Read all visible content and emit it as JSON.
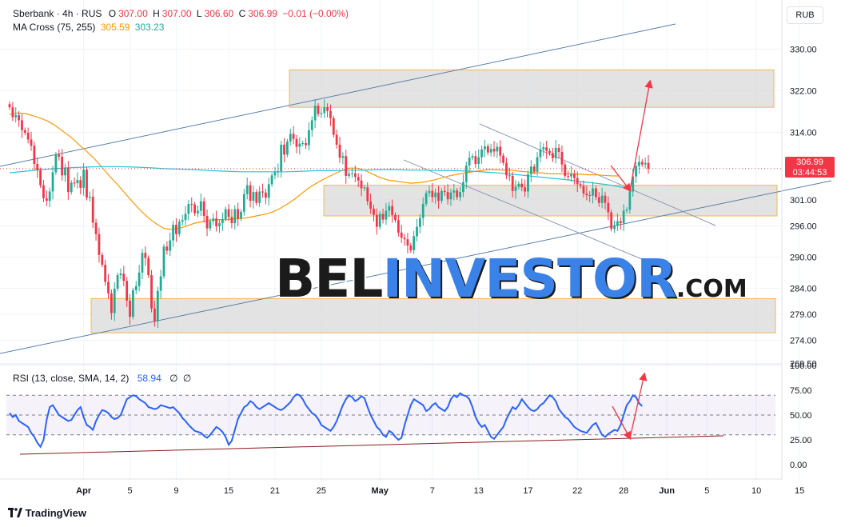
{
  "header": {
    "symbol": "Sberbank · 4h · RUS",
    "o_label": "O",
    "o": "307.00",
    "h_label": "H",
    "h": "307.00",
    "l_label": "L",
    "l": "306.60",
    "c_label": "C",
    "c": "306.99",
    "change": "−0.01 (−0.00%)",
    "ma_label": "MA Cross (75, 255)",
    "ma_fast": "305.59",
    "ma_slow": "303.23",
    "rsi_label": "RSI (13, close, SMA, 14, 2)",
    "rsi_value": "58.94",
    "rsi_na1": "∅",
    "rsi_na2": "∅",
    "currency": "RUB"
  },
  "price_tag": {
    "price": "306.99",
    "countdown": "03:44:53"
  },
  "watermark": {
    "part1": "BEL",
    "part2": "INVESTOR",
    "part3": ".COM"
  },
  "branding": {
    "logo_icon": "tradingview-logo-icon",
    "text": "TradingView"
  },
  "colors": {
    "up": "#22ab94",
    "down": "#f23645",
    "ma_fast": "#ff9800",
    "ma_slow": "#26c6da",
    "rsi": "#2962ff",
    "trend": "#5b7fa6",
    "zone_fill": "#d9d9d9",
    "zone_border": "#f2b84b",
    "arrow": "#f23645"
  },
  "chart_data": [
    {
      "type": "candlestick",
      "title": "Sberbank · 4h · RUS",
      "y_ticks": [
        330.0,
        322.0,
        314.0,
        301.0,
        296.0,
        290.0,
        284.0,
        279.0,
        274.0,
        269.5
      ],
      "y_tick_labels": [
        "330.00",
        "322.00",
        "314.00",
        "301.00",
        "296.00",
        "290.00",
        "284.00",
        "279.00",
        "274.00",
        "269.50"
      ],
      "x_ticks": [
        {
          "label": "Apr",
          "bar": 24
        },
        {
          "label": "5",
          "bar": 39
        },
        {
          "label": "9",
          "bar": 54
        },
        {
          "label": "15",
          "bar": 71
        },
        {
          "label": "21",
          "bar": 86
        },
        {
          "label": "25",
          "bar": 101
        },
        {
          "label": "May",
          "bar": 120
        },
        {
          "label": "7",
          "bar": 137
        },
        {
          "label": "13",
          "bar": 152
        },
        {
          "label": "17",
          "bar": 168
        },
        {
          "label": "22",
          "bar": 184
        },
        {
          "label": "28",
          "bar": 199
        },
        {
          "label": "Jun",
          "bar": 213
        },
        {
          "label": "5",
          "bar": 226
        },
        {
          "label": "10",
          "bar": 242
        },
        {
          "label": "15",
          "bar": 256
        }
      ],
      "closes": [
        318.8,
        316.9,
        317.3,
        316.3,
        314.4,
        313.9,
        312.6,
        311.4,
        307.9,
        306.7,
        303.8,
        301.3,
        300.8,
        302.6,
        306.3,
        309.7,
        309.3,
        305.7,
        307.2,
        302.5,
        304.3,
        304.2,
        304.8,
        303.3,
        306.8,
        301.4,
        301.6,
        296.6,
        294.4,
        290.4,
        288.5,
        285.2,
        283.0,
        279.2,
        283.9,
        286.5,
        286.8,
        285.4,
        281.6,
        278.5,
        283.6,
        284.4,
        287.0,
        290.8,
        289.8,
        286.5,
        280.1,
        277.6,
        283.5,
        286.3,
        292.0,
        291.2,
        293.2,
        296.2,
        294.4,
        296.8,
        297.1,
        298.3,
        300.2,
        300.1,
        298.4,
        298.9,
        300.7,
        297.9,
        295.5,
        296.9,
        297.4,
        295.9,
        296.5,
        297.3,
        299.2,
        297.7,
        296.5,
        299.2,
        297.4,
        298.7,
        302.1,
        303.8,
        300.8,
        302.5,
        300.4,
        302.6,
        302.4,
        301.4,
        304.0,
        305.7,
        306.3,
        306.5,
        311.6,
        309.7,
        312.2,
        313.7,
        312.7,
        311.2,
        311.8,
        311.9,
        311.5,
        314.4,
        316.3,
        319.1,
        317.5,
        317.7,
        318.8,
        318.1,
        316.7,
        313.5,
        311.6,
        309.1,
        309.4,
        305.6,
        306.0,
        306.1,
        305.4,
        304.7,
        303.2,
        303.4,
        300.7,
        299.3,
        298.1,
        295.8,
        298.3,
        297.2,
        298.9,
        299.8,
        298.1,
        297.1,
        294.7,
        293.7,
        293.4,
        292.2,
        291.3,
        294.0,
        295.8,
        297.5,
        300.2,
        302.3,
        302.7,
        301.5,
        302.4,
        300.8,
        302.7,
        302.5,
        301.1,
        302.4,
        302.8,
        301.5,
        302.5,
        304.4,
        307.6,
        309.1,
        309.4,
        307.9,
        309.2,
        310.7,
        311.3,
        310.1,
        310.8,
        310.3,
        311.2,
        309.5,
        308.1,
        305.7,
        305.6,
        302.7,
        303.5,
        304.1,
        303.4,
        302.6,
        305.9,
        307.4,
        306.4,
        309.2,
        310.7,
        311.1,
        310.4,
        310.0,
        309.0,
        311.0,
        310.2,
        307.8,
        305.6,
        305.5,
        306.0,
        305.2,
        304.0,
        303.7,
        302.2,
        301.9,
        301.8,
        303.2,
        301.5,
        300.4,
        301.8,
        300.4,
        298.6,
        295.4,
        296.0,
        296.9,
        296.5,
        298.9,
        299.1,
        302.6,
        305.5,
        307.5,
        308.3,
        307.8,
        308.1,
        306.99
      ],
      "ma_fast_series": [
        317.4,
        317.7,
        317.6,
        317.2,
        316.7,
        316.1,
        315.2,
        314.1,
        313.0,
        311.6,
        310.3,
        308.9,
        307.2,
        305.5,
        303.9,
        302.2,
        300.5,
        298.9,
        297.5,
        296.4,
        295.5,
        295.3,
        295.5,
        296.0,
        296.5,
        296.8,
        297.1,
        297.2,
        297.2,
        297.3,
        297.4,
        297.6,
        297.9,
        298.2,
        298.6,
        299.3,
        300.2,
        301.2,
        302.4,
        303.5,
        304.4,
        305.2,
        305.9,
        306.6,
        307.1,
        307.1,
        306.7,
        306.0,
        305.3,
        304.8,
        304.6,
        304.4,
        304.2,
        304.3,
        304.5,
        304.8,
        305.2,
        305.6,
        305.9,
        306.2,
        306.4,
        306.6,
        306.8,
        306.8,
        306.7,
        306.7,
        306.5,
        306.4,
        306.2,
        306.2,
        306.0,
        306.0,
        306.0,
        306.0,
        305.9,
        305.8,
        305.8,
        305.7,
        305.6,
        305.59
      ],
      "ma_slow_series": [
        306.2,
        306.5,
        306.8,
        307.0,
        307.2,
        307.3,
        307.4,
        307.4,
        307.3,
        307.2,
        307.0,
        306.9,
        306.8,
        306.6,
        306.5,
        306.4,
        306.4,
        306.4,
        306.4,
        306.5,
        306.6,
        306.6,
        306.7,
        306.7,
        306.8,
        306.8,
        306.7,
        306.7,
        306.6,
        306.6,
        306.5,
        306.3,
        306.1,
        305.8,
        305.5,
        305.2,
        304.9,
        304.5,
        304.2,
        303.8,
        303.23
      ],
      "annotations": {
        "resistance_zone": {
          "top": 326.0,
          "bottom": 318.8
        },
        "middle_zone": {
          "top": 303.8,
          "bottom": 297.9
        },
        "support_zone": {
          "top": 282.0,
          "bottom": 275.4
        },
        "last_price": 306.99
      }
    },
    {
      "type": "line",
      "title": "RSI (13, close, SMA, 14, 2)",
      "y_ticks": [
        100.0,
        75.0,
        50.0,
        25.0,
        0.0
      ],
      "y_tick_labels": [
        "100.00",
        "75.00",
        "50.00",
        "25.00",
        "0.00"
      ],
      "bands": {
        "upper": 70,
        "middle": 50,
        "lower": 30
      },
      "ylim": [
        -5,
        100
      ],
      "values": [
        52,
        48,
        50,
        44,
        42,
        40,
        38,
        32,
        28,
        22,
        18,
        25,
        45,
        58,
        60,
        55,
        50,
        48,
        46,
        44,
        45,
        50,
        55,
        58,
        48,
        40,
        38,
        35,
        44,
        50,
        55,
        54,
        52,
        48,
        46,
        47,
        50,
        58,
        66,
        68,
        70,
        69,
        66,
        64,
        62,
        58,
        57,
        56,
        57,
        60,
        59,
        58,
        57,
        58,
        55,
        52,
        47,
        44,
        40,
        37,
        34,
        33,
        32,
        29,
        27,
        30,
        34,
        38,
        36,
        33,
        28,
        20,
        24,
        35,
        46,
        52,
        58,
        60,
        64,
        62,
        58,
        56,
        58,
        60,
        62,
        60,
        58,
        56,
        55,
        57,
        60,
        63,
        68,
        71,
        70,
        66,
        60,
        56,
        52,
        50,
        46,
        40,
        38,
        36,
        34,
        38,
        44,
        52,
        60,
        66,
        70,
        68,
        64,
        66,
        69,
        67,
        58,
        50,
        44,
        38,
        35,
        30,
        28,
        34,
        32,
        28,
        25,
        27,
        40,
        50,
        60,
        66,
        64,
        62,
        60,
        54,
        56,
        60,
        62,
        58,
        56,
        54,
        58,
        66,
        70,
        68,
        72,
        70,
        69,
        66,
        58,
        48,
        42,
        38,
        40,
        34,
        28,
        26,
        30,
        34,
        38,
        46,
        52,
        58,
        56,
        60,
        66,
        62,
        58,
        55,
        54,
        56,
        60,
        62,
        66,
        70,
        68,
        64,
        56,
        52,
        48,
        46,
        42,
        38,
        36,
        34,
        33,
        32,
        36,
        40,
        42,
        36,
        30,
        28,
        31,
        33,
        35,
        34,
        40,
        50,
        60,
        64,
        70,
        68,
        62,
        58.94
      ],
      "value_label": "58.94"
    }
  ]
}
